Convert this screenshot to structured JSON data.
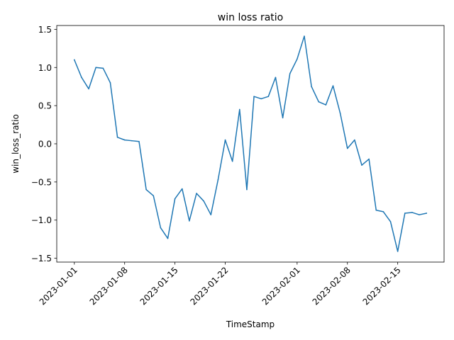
{
  "chart_data": {
    "type": "line",
    "title": "win loss ratio",
    "xlabel": "TimeStamp",
    "ylabel": "win_loss_ratio",
    "x_start": "2023-01-01",
    "x_ticks": [
      {
        "label": "2023-01-01",
        "day": 0
      },
      {
        "label": "2023-01-08",
        "day": 7
      },
      {
        "label": "2023-01-15",
        "day": 14
      },
      {
        "label": "2023-01-22",
        "day": 21
      },
      {
        "label": "2023-02-01",
        "day": 31
      },
      {
        "label": "2023-02-08",
        "day": 38
      },
      {
        "label": "2023-02-15",
        "day": 45
      }
    ],
    "y_ticks": [
      {
        "label": "1.5",
        "value": 1.5
      },
      {
        "label": "1.0",
        "value": 1.0
      },
      {
        "label": "0.5",
        "value": 0.5
      },
      {
        "label": "0.0",
        "value": 0.0
      },
      {
        "label": "−0.5",
        "value": -0.5
      },
      {
        "label": "−1.0",
        "value": -1.0
      },
      {
        "label": "−1.5",
        "value": -1.5
      }
    ],
    "xlim": [
      -2.45,
      51.45
    ],
    "ylim": [
      -1.55,
      1.55
    ],
    "grid": false,
    "line_color": "#1f77b4",
    "series": [
      {
        "values": [
          1.1,
          0.87,
          0.72,
          1.0,
          0.99,
          0.8,
          0.085,
          0.05,
          0.04,
          0.03,
          -0.6,
          -0.68,
          -1.1,
          -1.24,
          -0.72,
          -0.59,
          -1.01,
          -0.65,
          -0.75,
          -0.93,
          -0.47,
          0.05,
          -0.23,
          0.45,
          -0.6,
          0.62,
          0.59,
          0.62,
          0.87,
          0.34,
          0.92,
          1.11,
          1.41,
          0.75,
          0.55,
          0.51,
          0.76,
          0.4,
          -0.06,
          0.05,
          -0.28,
          -0.2,
          -0.87,
          -0.89,
          -1.02,
          -1.41,
          -0.91,
          -0.9,
          -0.93,
          -0.91
        ]
      }
    ]
  }
}
